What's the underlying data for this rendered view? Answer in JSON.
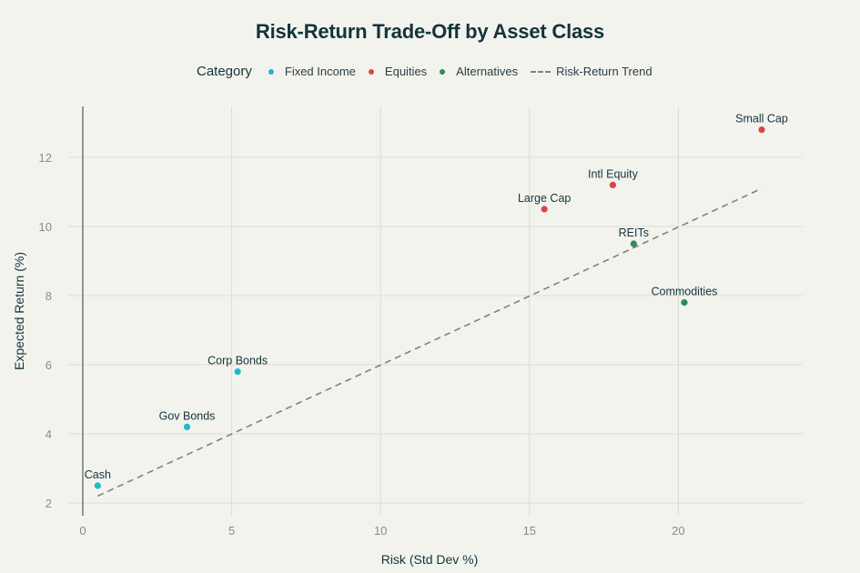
{
  "chart_data": {
    "type": "scatter",
    "title": "Risk-Return Trade-Off by Asset Class",
    "xlabel": "Risk (Std Dev %)",
    "ylabel": "Expected Return (%)",
    "xlim": [
      -0.5,
      24.1
    ],
    "ylim": [
      1.6,
      13.5
    ],
    "x_ticks": [
      0,
      5,
      10,
      15,
      20
    ],
    "y_ticks": [
      2,
      4,
      6,
      8,
      10,
      12
    ],
    "grid": true,
    "legend_title": "Category",
    "legend_position": "top",
    "series": [
      {
        "name": "Fixed Income",
        "color": "#1FB8CD",
        "points": [
          {
            "label": "Cash",
            "x": 0.5,
            "y": 2.5
          },
          {
            "label": "Gov Bonds",
            "x": 3.5,
            "y": 4.2
          },
          {
            "label": "Corp Bonds",
            "x": 5.2,
            "y": 5.8
          }
        ]
      },
      {
        "name": "Equities",
        "color": "#DB4545",
        "points": [
          {
            "label": "Large Cap",
            "x": 15.5,
            "y": 10.5
          },
          {
            "label": "Intl Equity",
            "x": 17.8,
            "y": 11.2
          },
          {
            "label": "Small Cap",
            "x": 22.8,
            "y": 12.8
          }
        ]
      },
      {
        "name": "Alternatives",
        "color": "#2E8B57",
        "points": [
          {
            "label": "REITs",
            "x": 18.5,
            "y": 9.5
          },
          {
            "label": "Commodities",
            "x": 20.2,
            "y": 7.8
          }
        ]
      }
    ],
    "trend_line": {
      "name": "Risk-Return Trend",
      "style": "dashed",
      "color": "#808080",
      "x": [
        0.5,
        22.8
      ],
      "y": [
        2.2,
        11.1
      ]
    }
  },
  "legend": {
    "title": "Category",
    "items": [
      {
        "label": "Fixed Income",
        "color": "#1FB8CD",
        "kind": "dot"
      },
      {
        "label": "Equities",
        "color": "#DB4545",
        "kind": "dot"
      },
      {
        "label": "Alternatives",
        "color": "#2E8B57",
        "kind": "dot"
      },
      {
        "label": "Risk-Return Trend",
        "color": "#808080",
        "kind": "dash"
      }
    ]
  }
}
